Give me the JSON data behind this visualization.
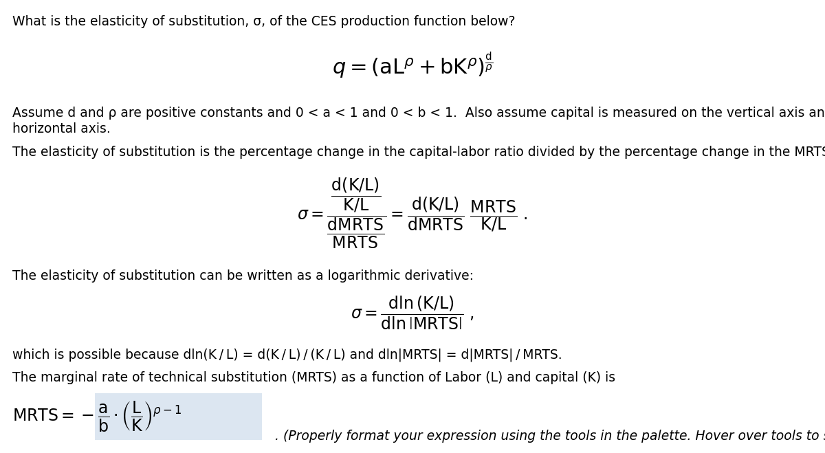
{
  "bg_color": "#ffffff",
  "text_color": "#000000",
  "highlight_color": "#dce6f1",
  "title_text": "What is the elasticity of substitution, σ, of the CES production function below?",
  "assume_text": "Assume d and ρ are positive constants and 0 < a < 1 and 0 < b < 1.  Also assume capital is measured on the vertical axis and labor on the",
  "assume_text2": "horizontal axis.",
  "elasticity_def": "The elasticity of substitution is the percentage change in the capital-labor ratio divided by the percentage change in the MRTS:",
  "log_deriv": "The elasticity of substitution can be written as a logarithmic derivative:",
  "which_possible": "which is possible because dln(K / L) = d(K / L) / (K / L) and dln|MRTS| = d|MRTS| / MRTS.",
  "mrts_intro": "The marginal rate of technical substitution (MRTS) as a function of Labor (L) and capital (K) is",
  "palette_note": "(Properly format your expression using the tools in the palette. Hover over tools to see keyboard",
  "fontsize_body": 13.5,
  "fontsize_math": 15
}
